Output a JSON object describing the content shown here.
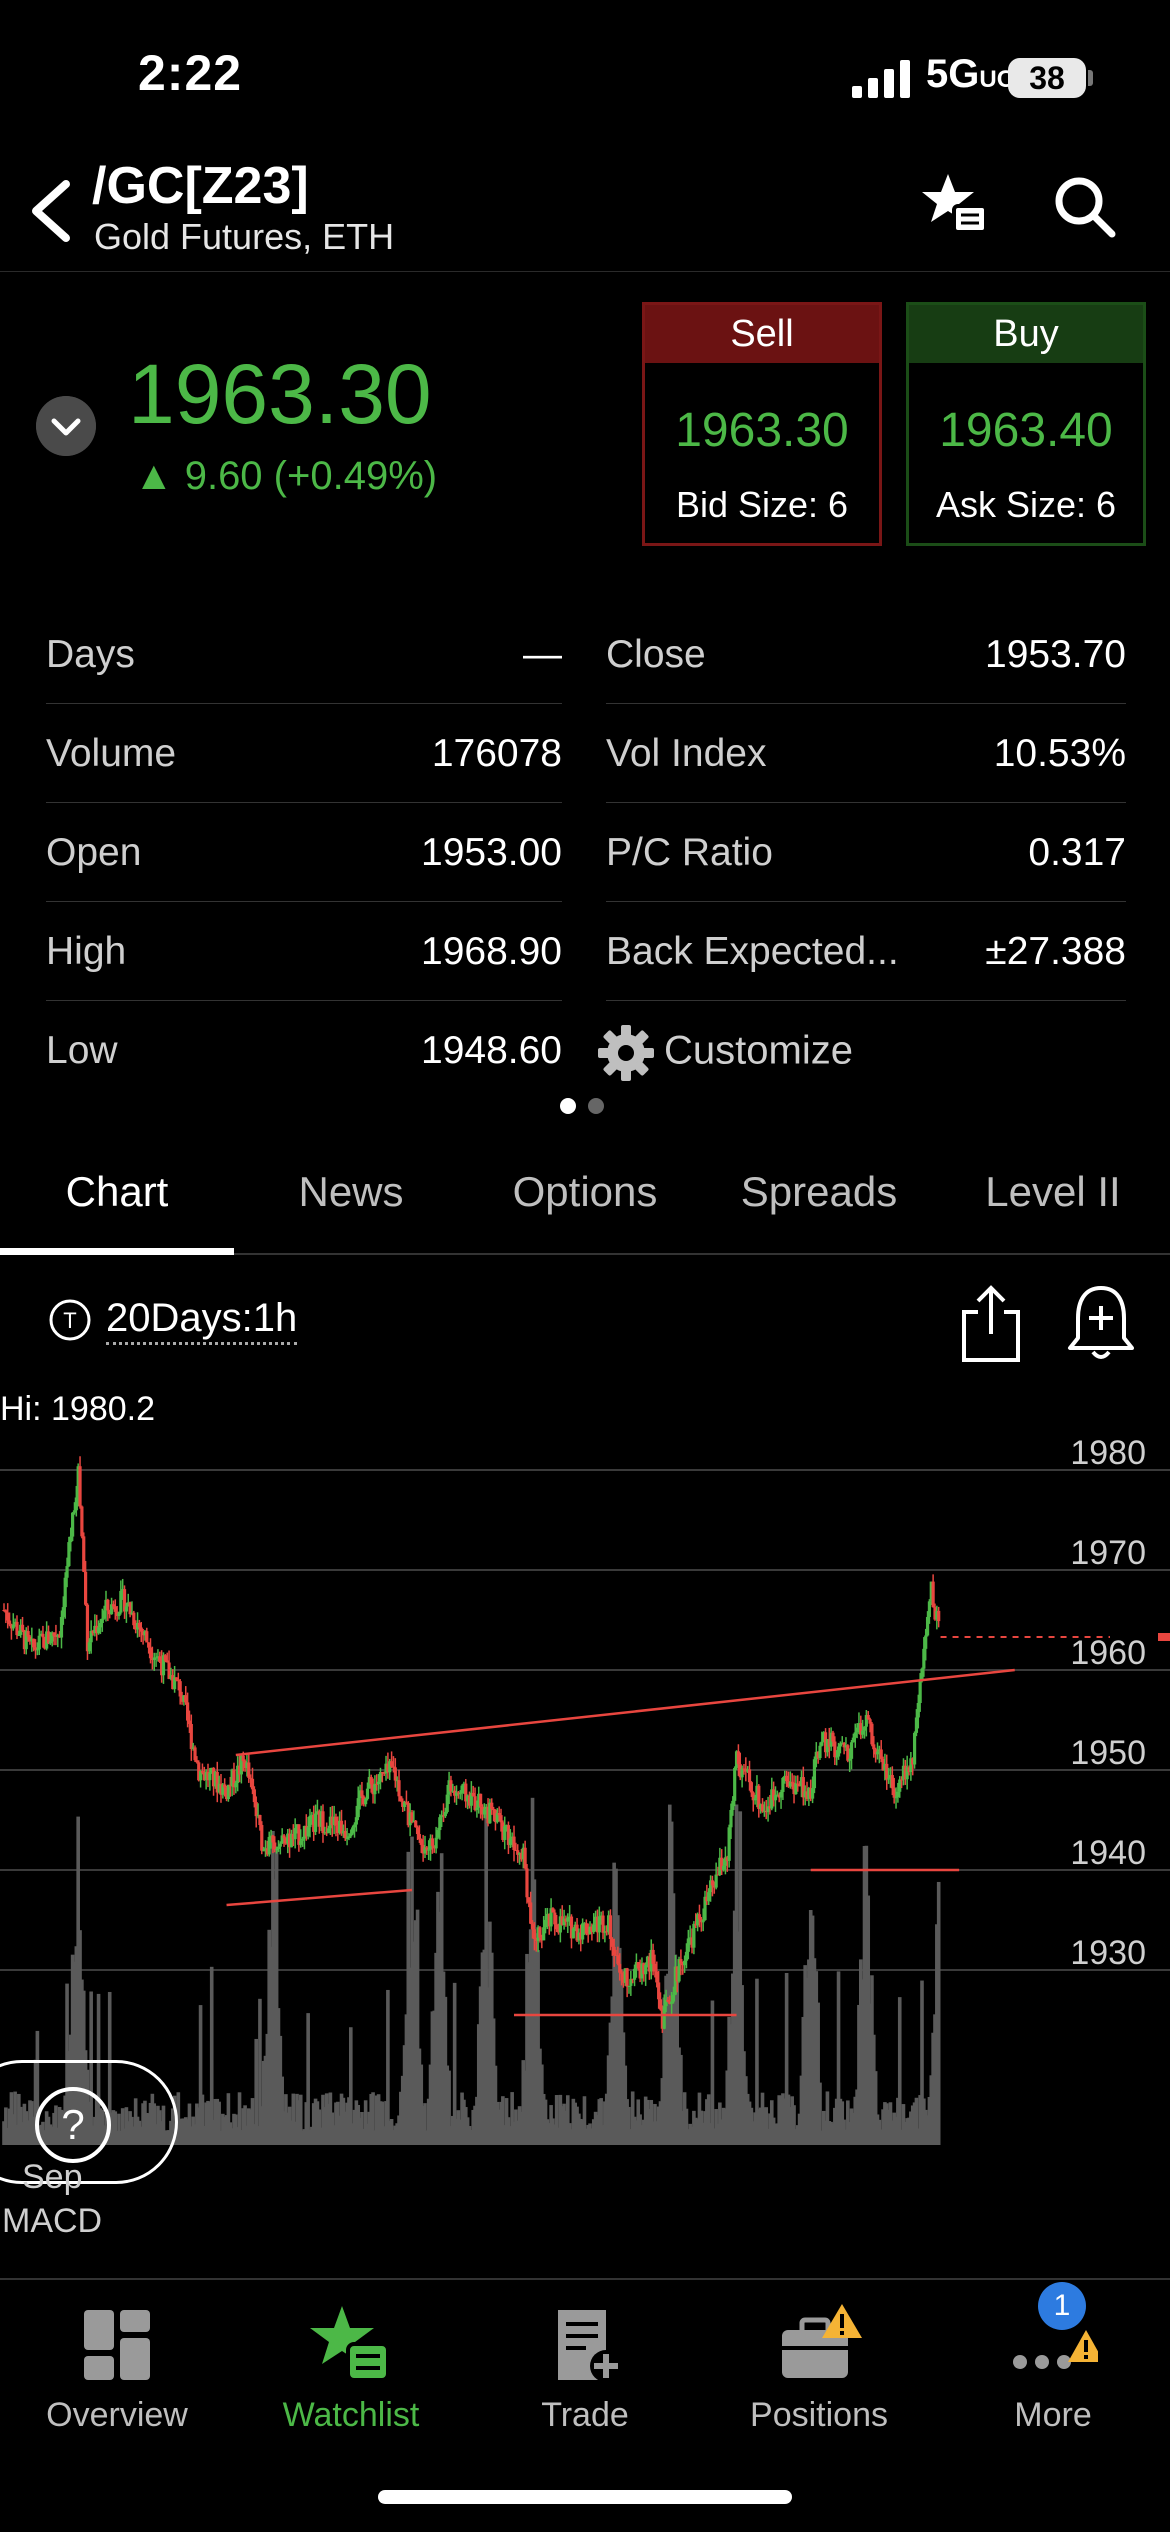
{
  "status_bar": {
    "time": "2:22",
    "network": "5G",
    "network_suffix": "UC",
    "battery": "38"
  },
  "header": {
    "symbol": "/GC[Z23]",
    "description": "Gold Futures, ETH"
  },
  "quote": {
    "last": "1963.30",
    "change": "9.60 (+0.49%)",
    "sell": {
      "label": "Sell",
      "price": "1963.30",
      "size": "Bid Size: 6"
    },
    "buy": {
      "label": "Buy",
      "price": "1963.40",
      "size": "Ask Size: 6"
    }
  },
  "stats": {
    "left": [
      {
        "label": "Days",
        "value": "—"
      },
      {
        "label": "Volume",
        "value": "176078"
      },
      {
        "label": "Open",
        "value": "1953.00"
      },
      {
        "label": "High",
        "value": "1968.90"
      },
      {
        "label": "Low",
        "value": "1948.60"
      }
    ],
    "right": [
      {
        "label": "Close",
        "value": "1953.70"
      },
      {
        "label": "Vol Index",
        "value": "10.53%"
      },
      {
        "label": "P/C Ratio",
        "value": "0.317"
      },
      {
        "label": "Back Expected...",
        "value": "±27.388"
      }
    ],
    "customize_label": "Customize"
  },
  "tabs": [
    "Chart",
    "News",
    "Options",
    "Spreads",
    "Level II"
  ],
  "chart": {
    "interval": "20Days:1h",
    "hi_label": "Hi: 1980.2",
    "sep_label": "Sep",
    "study_label": "MACD"
  },
  "chart_data": {
    "type": "candlestick",
    "title": "",
    "y_ticks": [
      1980,
      1970,
      1960,
      1950,
      1940,
      1930
    ],
    "ylim": [
      1925,
      1985
    ],
    "grid": true,
    "hi": 1980.2,
    "last": 1963.3,
    "price_path": [
      [
        0,
        1966
      ],
      [
        3,
        1962
      ],
      [
        6,
        1964
      ],
      [
        8,
        1980
      ],
      [
        9,
        1963
      ],
      [
        11,
        1966
      ],
      [
        13,
        1967
      ],
      [
        16,
        1962
      ],
      [
        19,
        1958
      ],
      [
        21,
        1950
      ],
      [
        24,
        1948
      ],
      [
        26,
        1951
      ],
      [
        28,
        1942
      ],
      [
        31,
        1943
      ],
      [
        34,
        1945
      ],
      [
        37,
        1944
      ],
      [
        39,
        1948
      ],
      [
        42,
        1950
      ],
      [
        44,
        1944
      ],
      [
        46,
        1942
      ],
      [
        48,
        1948
      ],
      [
        51,
        1947
      ],
      [
        54,
        1944
      ],
      [
        56,
        1942
      ],
      [
        57,
        1933
      ],
      [
        59,
        1935
      ],
      [
        62,
        1934
      ],
      [
        65,
        1935
      ],
      [
        67,
        1929
      ],
      [
        70,
        1931
      ],
      [
        71,
        1925
      ],
      [
        73,
        1931
      ],
      [
        75,
        1935
      ],
      [
        78,
        1942
      ],
      [
        79,
        1951
      ],
      [
        82,
        1946
      ],
      [
        84,
        1949
      ],
      [
        87,
        1948
      ],
      [
        88,
        1953
      ],
      [
        91,
        1952
      ],
      [
        93,
        1955
      ],
      [
        96,
        1948
      ],
      [
        98,
        1951
      ],
      [
        100,
        1968
      ],
      [
        101,
        1963.3
      ]
    ],
    "volume_spikes_x": [
      8,
      29,
      44,
      47,
      52,
      57,
      66,
      72,
      79,
      87,
      93,
      101
    ],
    "trendlines": [
      {
        "x": [
          25,
          109
        ],
        "y": [
          1951.5,
          1960
        ]
      },
      {
        "x": [
          24,
          44
        ],
        "y": [
          1936.5,
          1938
        ]
      },
      {
        "x": [
          55,
          79
        ],
        "y": [
          1925.5,
          1925.5
        ]
      },
      {
        "x": [
          87,
          103
        ],
        "y": [
          1940,
          1940
        ]
      }
    ],
    "x_range": [
      0,
      110
    ]
  },
  "bottom_nav": [
    {
      "label": "Overview",
      "icon": "overview-icon"
    },
    {
      "label": "Watchlist",
      "icon": "watchlist-icon"
    },
    {
      "label": "Trade",
      "icon": "trade-icon"
    },
    {
      "label": "Positions",
      "icon": "positions-icon"
    },
    {
      "label": "More",
      "icon": "more-icon"
    }
  ],
  "more_badge": "1",
  "colors": {
    "up": "#4cb847",
    "down": "#e8463f",
    "accent_green": "#4cb847",
    "sell_red": "#6b1212",
    "buy_green": "#173d13",
    "warning": "#f5b335"
  }
}
